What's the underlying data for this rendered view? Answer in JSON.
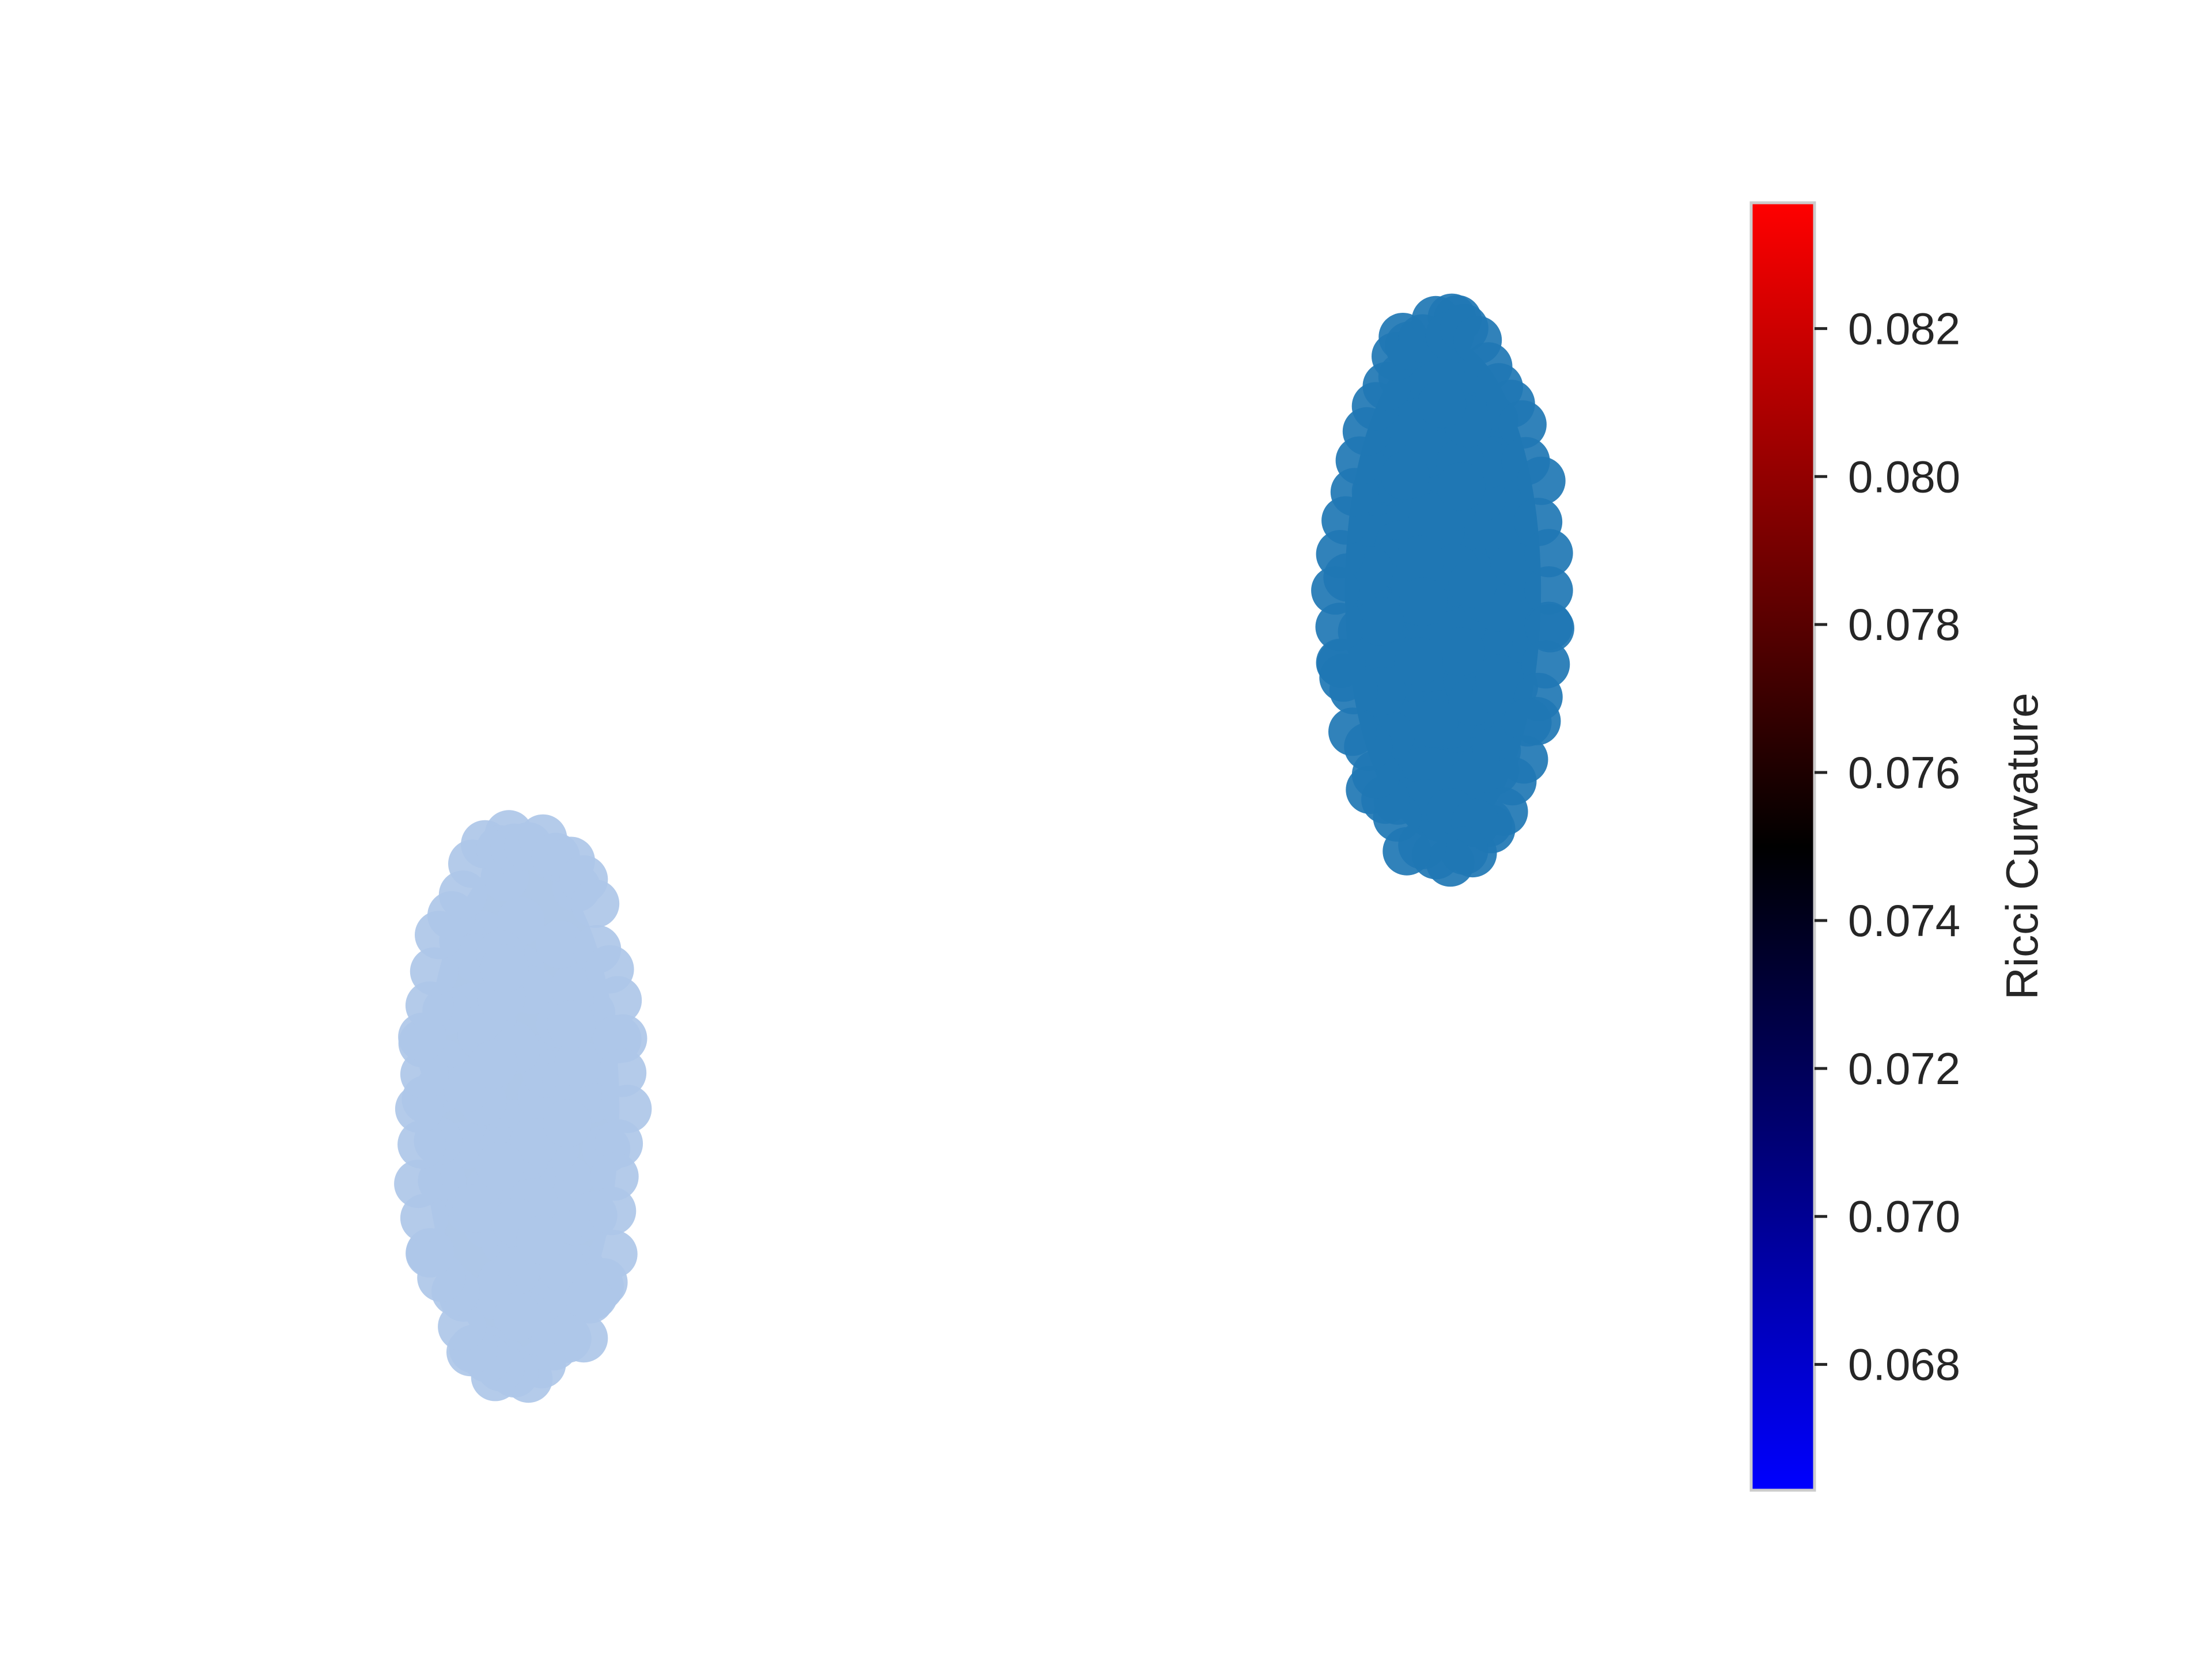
{
  "chart_data": {
    "type": "scatter",
    "title": "",
    "xlabel": "",
    "ylabel": "",
    "axes_visible": false,
    "grid": false,
    "clusters": [
      {
        "color": "#aec7e8",
        "node_count_estimate": 100
      },
      {
        "color": "#1f77b4",
        "node_count_estimate": 100
      }
    ],
    "colorbar": {
      "label": "Ricci Curvature",
      "colormap": [
        "#0000ff",
        "#000000",
        "#ff0000"
      ],
      "range": [
        0.0663,
        0.0837
      ],
      "ticks": [
        0.068,
        0.07,
        0.072,
        0.074,
        0.076,
        0.078,
        0.08,
        0.082
      ],
      "tick_labels": [
        "0.068",
        "0.070",
        "0.072",
        "0.074",
        "0.076",
        "0.078",
        "0.080",
        "0.082"
      ],
      "placement": "right"
    }
  }
}
